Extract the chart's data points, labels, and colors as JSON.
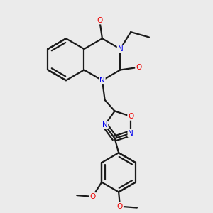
{
  "background_color": "#ebebeb",
  "bond_color": "#1a1a1a",
  "bond_width": 1.6,
  "N_color": "#0000ee",
  "O_color": "#ee0000",
  "font_size_atom": 7.5,
  "fig_size": [
    3.0,
    3.0
  ],
  "dpi": 100,
  "xlim": [
    0.0,
    3.0
  ],
  "ylim": [
    0.0,
    3.2
  ]
}
